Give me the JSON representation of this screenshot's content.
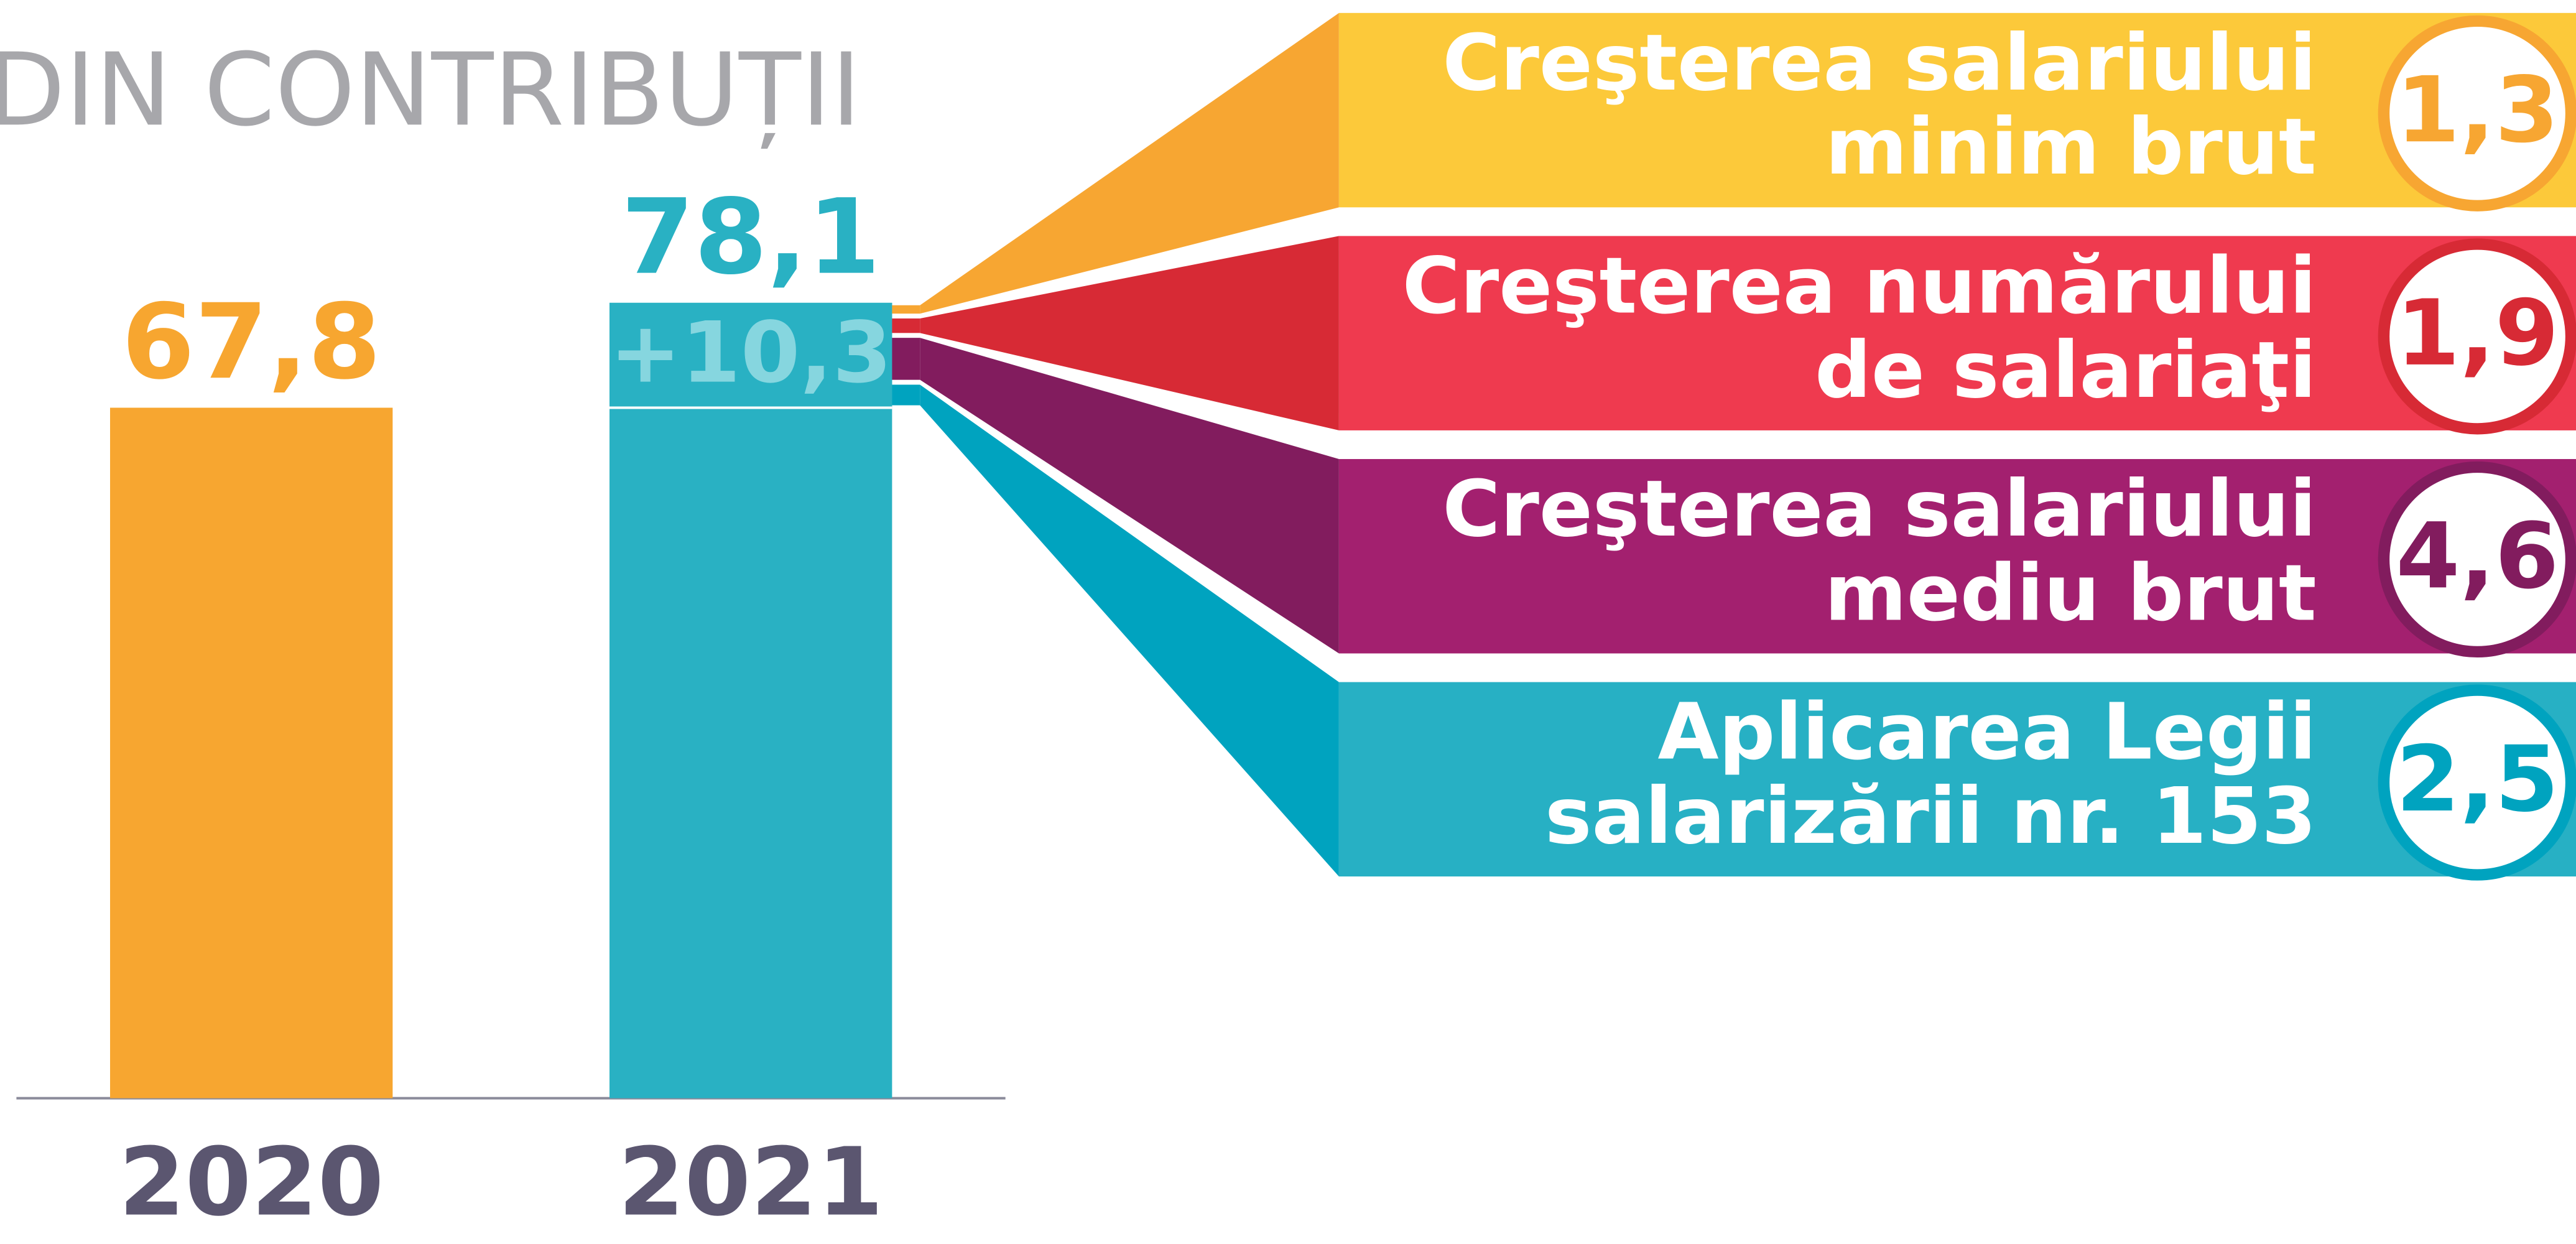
{
  "chart_data": {
    "type": "bar",
    "title": "DIN CONTRIBUȚII",
    "categories": [
      "2020",
      "2021"
    ],
    "values": [
      67.8,
      78.1
    ],
    "value_labels": [
      "67,8",
      "78,1"
    ],
    "colors": [
      "#f7a630",
      "#29b1c3"
    ],
    "ylim": [
      0,
      80
    ],
    "increase": {
      "value": 10.3,
      "label": "+10,3"
    },
    "components": [
      {
        "label": [
          "Creşterea salariului",
          "minim brut"
        ],
        "value": 1.3,
        "value_label": "1,3",
        "color": "#fcc93a",
        "dark": "#f7a632"
      },
      {
        "label": [
          "Creşterea numărului",
          "de salariaţi"
        ],
        "value": 1.9,
        "value_label": "1,9",
        "color": "#ef3a4f",
        "dark": "#d72a35"
      },
      {
        "label": [
          "Creşterea salariului",
          "mediu brut"
        ],
        "value": 4.6,
        "value_label": "4,6",
        "color": "#a3206f",
        "dark": "#821c5e"
      },
      {
        "label": [
          "Aplicarea Legii",
          "salarizării nr. 153"
        ],
        "value": 2.5,
        "value_label": "2,5",
        "color": "#27b0c4",
        "dark": "#00a3bf"
      }
    ]
  }
}
